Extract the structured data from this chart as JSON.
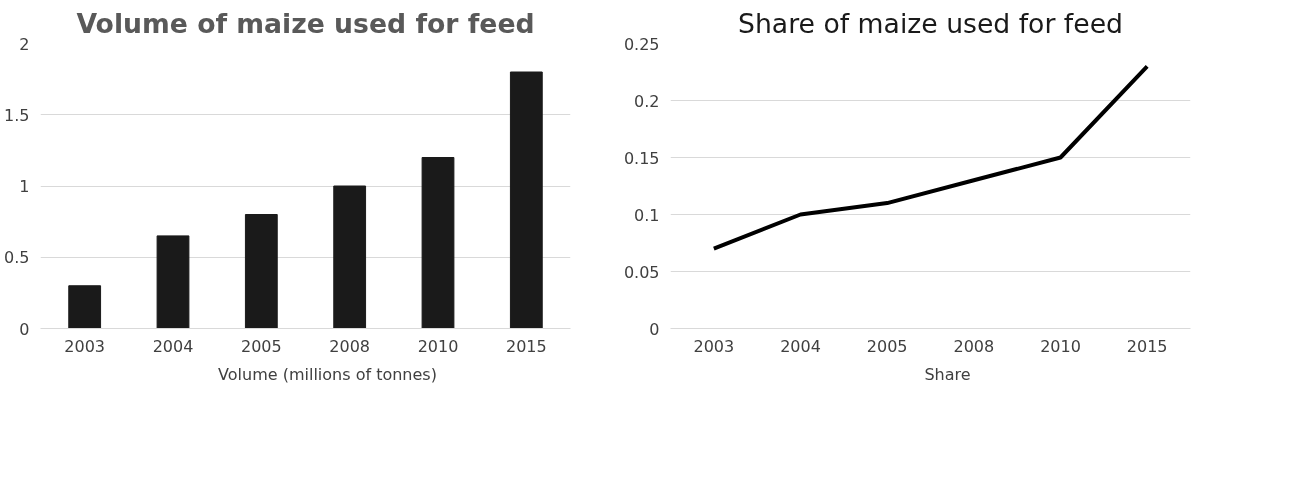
{
  "chart_data": [
    {
      "type": "bar",
      "title": "Volume of maize used for feed",
      "categories": [
        "2003",
        "2004",
        "2005",
        "2008",
        "2010",
        "2015"
      ],
      "series": [
        {
          "name": "Volume (millions of tonnes)",
          "color": "#1a1a1a",
          "values": [
            0.3,
            0.65,
            0.8,
            1.0,
            1.2,
            1.8
          ]
        }
      ],
      "ylim": [
        0,
        2
      ],
      "yticks": [
        0,
        0.5,
        1,
        1.5,
        2
      ],
      "grid": "y",
      "legend": "bottom"
    },
    {
      "type": "line",
      "title": "Share of maize used for feed",
      "categories": [
        "2003",
        "2004",
        "2005",
        "2008",
        "2010",
        "2015"
      ],
      "series": [
        {
          "name": "Share",
          "color": "#000000",
          "values": [
            0.07,
            0.1,
            0.11,
            0.13,
            0.15,
            0.23
          ]
        }
      ],
      "ylim": [
        0,
        0.25
      ],
      "yticks": [
        0,
        0.05,
        0.1,
        0.15,
        0.2,
        0.25
      ],
      "grid": "y",
      "legend": "bottom"
    }
  ]
}
